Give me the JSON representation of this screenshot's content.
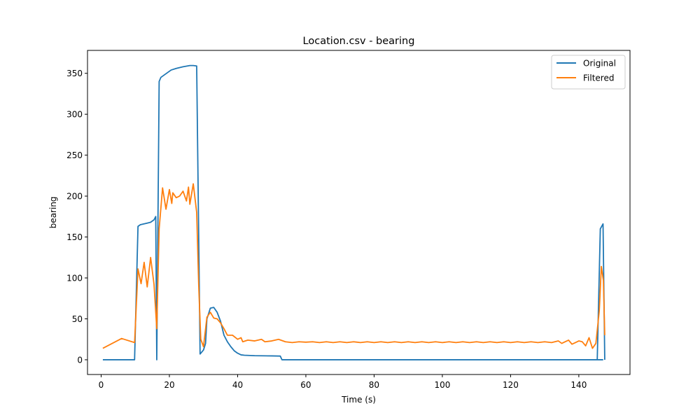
{
  "chart_data": {
    "type": "line",
    "title": "Location.csv - bearing",
    "xlabel": "Time (s)",
    "ylabel": "bearing",
    "xlim": [
      -4,
      155
    ],
    "ylim": [
      -18,
      378
    ],
    "xticks": [
      0,
      20,
      40,
      60,
      80,
      100,
      120,
      140
    ],
    "yticks": [
      0,
      50,
      100,
      150,
      200,
      250,
      300,
      350
    ],
    "grid": false,
    "legend_position": "top-right",
    "series": [
      {
        "name": "Original",
        "color": "#1f77b4",
        "points": [
          [
            0.5,
            0
          ],
          [
            9.8,
            0
          ],
          [
            10.8,
            163
          ],
          [
            11.5,
            165
          ],
          [
            12.5,
            166
          ],
          [
            13.5,
            167
          ],
          [
            14.5,
            168
          ],
          [
            15.5,
            171
          ],
          [
            16.0,
            175
          ],
          [
            16.3,
            0
          ],
          [
            17.0,
            340
          ],
          [
            17.5,
            345
          ],
          [
            18.5,
            348
          ],
          [
            19.5,
            351
          ],
          [
            20.5,
            354
          ],
          [
            22,
            356
          ],
          [
            24,
            358
          ],
          [
            26,
            359.5
          ],
          [
            27,
            359.5
          ],
          [
            28,
            359
          ],
          [
            29,
            7
          ],
          [
            30,
            12
          ],
          [
            30.6,
            20
          ],
          [
            31,
            50
          ],
          [
            32,
            63
          ],
          [
            33,
            64
          ],
          [
            34,
            58
          ],
          [
            35,
            47
          ],
          [
            36,
            30
          ],
          [
            37,
            22
          ],
          [
            38,
            16
          ],
          [
            39,
            11
          ],
          [
            40,
            8
          ],
          [
            41,
            6
          ],
          [
            42,
            5.5
          ],
          [
            45,
            5
          ],
          [
            50,
            4.7
          ],
          [
            52.5,
            4.5
          ],
          [
            53,
            0
          ],
          [
            147.0,
            0
          ],
          [
            145.4,
            0
          ],
          [
            146.3,
            160
          ],
          [
            147.1,
            166
          ],
          [
            147.6,
            0
          ]
        ]
      },
      {
        "name": "Filtered",
        "color": "#ff7f0e",
        "points": [
          [
            0.5,
            14
          ],
          [
            6,
            26
          ],
          [
            9.8,
            21
          ],
          [
            10.8,
            111
          ],
          [
            11.7,
            93
          ],
          [
            12.6,
            119
          ],
          [
            13.5,
            89
          ],
          [
            14.5,
            125
          ],
          [
            15.5,
            92
          ],
          [
            16.3,
            38
          ],
          [
            17.0,
            160
          ],
          [
            18.0,
            210
          ],
          [
            19.0,
            184
          ],
          [
            20.0,
            208
          ],
          [
            20.7,
            191
          ],
          [
            21.0,
            204
          ],
          [
            22.0,
            198
          ],
          [
            23.0,
            200
          ],
          [
            24.0,
            206
          ],
          [
            25.0,
            194
          ],
          [
            25.6,
            211
          ],
          [
            26.0,
            190
          ],
          [
            27.0,
            215
          ],
          [
            28.0,
            180
          ],
          [
            28.6,
            90
          ],
          [
            29.2,
            25
          ],
          [
            30.0,
            16
          ],
          [
            31.0,
            52
          ],
          [
            32.0,
            58
          ],
          [
            33.0,
            51
          ],
          [
            34.0,
            50
          ],
          [
            35.0,
            45
          ],
          [
            36.0,
            38
          ],
          [
            37.0,
            30
          ],
          [
            38.5,
            30
          ],
          [
            40.0,
            25
          ],
          [
            41.0,
            27
          ],
          [
            41.5,
            22
          ],
          [
            43,
            24
          ],
          [
            45,
            23
          ],
          [
            47,
            25
          ],
          [
            48,
            22
          ],
          [
            50,
            23
          ],
          [
            52,
            25
          ],
          [
            54,
            22
          ],
          [
            56,
            21
          ],
          [
            58,
            22
          ],
          [
            60,
            21.5
          ],
          [
            62,
            22
          ],
          [
            64,
            21
          ],
          [
            66,
            22
          ],
          [
            68,
            21
          ],
          [
            70,
            22
          ],
          [
            72,
            21
          ],
          [
            74,
            22
          ],
          [
            76,
            21
          ],
          [
            78,
            22
          ],
          [
            80,
            21
          ],
          [
            82,
            22
          ],
          [
            84,
            21
          ],
          [
            86,
            22
          ],
          [
            88,
            21
          ],
          [
            90,
            22
          ],
          [
            92,
            21
          ],
          [
            94,
            22
          ],
          [
            96,
            21
          ],
          [
            98,
            22
          ],
          [
            100,
            21
          ],
          [
            102,
            22
          ],
          [
            104,
            21
          ],
          [
            106,
            22
          ],
          [
            108,
            21
          ],
          [
            110,
            22
          ],
          [
            112,
            21
          ],
          [
            114,
            22
          ],
          [
            116,
            21
          ],
          [
            118,
            22
          ],
          [
            120,
            21
          ],
          [
            122,
            22
          ],
          [
            124,
            21
          ],
          [
            126,
            22
          ],
          [
            128,
            21
          ],
          [
            130,
            22
          ],
          [
            132,
            21
          ],
          [
            134,
            23
          ],
          [
            135,
            20
          ],
          [
            136,
            22
          ],
          [
            137,
            24
          ],
          [
            138,
            19
          ],
          [
            139,
            21
          ],
          [
            140,
            23
          ],
          [
            141,
            22
          ],
          [
            142,
            17
          ],
          [
            143,
            27
          ],
          [
            144,
            14
          ],
          [
            145,
            20
          ],
          [
            146.0,
            60
          ],
          [
            146.6,
            114
          ],
          [
            147.2,
            97
          ],
          [
            147.6,
            30
          ]
        ]
      }
    ]
  }
}
